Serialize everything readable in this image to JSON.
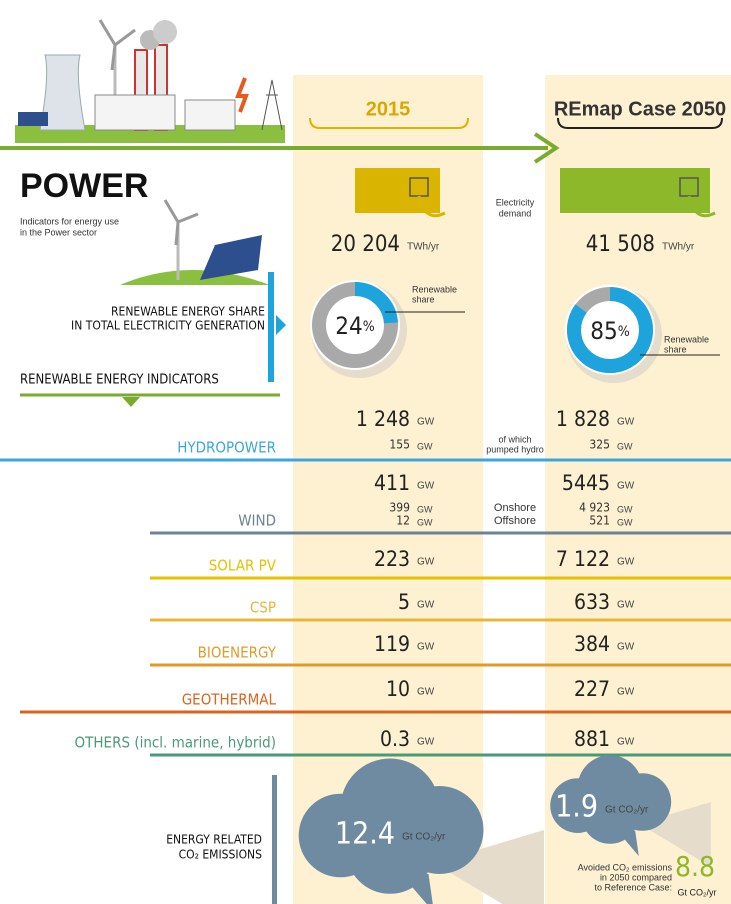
{
  "header": {
    "col_2015": "2015",
    "col_2050": "REmap Case 2050"
  },
  "title": "POWER",
  "subtitle": [
    "Indicators for energy use",
    "in the Power sector"
  ],
  "demand": {
    "label": [
      "Electricity",
      "demand"
    ],
    "v2015": "20 204",
    "v2050": "41 508",
    "unit": "TWh/yr",
    "color2015": "#d9b400",
    "color2050": "#8db82a"
  },
  "share": {
    "title": [
      "RENEWABLE ENERGY SHARE",
      "IN TOTAL ELECTRICITY GENERATION"
    ],
    "v2015": 24,
    "v2050": 85,
    "unit": "%",
    "label": [
      "Renewable",
      "share"
    ],
    "color": "#1ea4dd",
    "track": "#a9a9a9"
  },
  "indicators_title": "RENEWABLE ENERGY INDICATORS",
  "rows": [
    {
      "name": "HYDROPOWER",
      "color": "#3aa6dc",
      "v2015": "1 248",
      "v2050": "1 828",
      "unit": "GW",
      "sub": [
        {
          "label": [
            "of which",
            "pumped hydro"
          ],
          "v2015": "155",
          "v2050": "325"
        }
      ]
    },
    {
      "name": "WIND",
      "color": "#6b8494",
      "v2015": "411",
      "v2050": "5445",
      "unit": "GW",
      "sub": [
        {
          "label": [
            "Onshore"
          ],
          "v2015": "399",
          "v2050": "4 923"
        },
        {
          "label": [
            "Offshore"
          ],
          "v2015": "12",
          "v2050": "521"
        }
      ]
    },
    {
      "name": "SOLAR PV",
      "color": "#e5c100",
      "v2015": "223",
      "v2050": "7 122",
      "unit": "GW",
      "sub": []
    },
    {
      "name": "CSP",
      "color": "#e3b83a",
      "v2015": "5",
      "v2050": "633",
      "unit": "GW",
      "sub": []
    },
    {
      "name": "BIOENERGY",
      "color": "#e09a2a",
      "v2015": "119",
      "v2050": "384",
      "unit": "GW",
      "sub": []
    },
    {
      "name": "GEOTHERMAL",
      "color": "#d8641e",
      "v2015": "10",
      "v2050": "227",
      "unit": "GW",
      "sub": []
    },
    {
      "name": "OTHERS (incl. marine, hybrid)",
      "color": "#4a9a78",
      "v2015": "0.3",
      "v2050": "881",
      "unit": "GW",
      "sub": []
    }
  ],
  "emissions": {
    "title": [
      "ENERGY RELATED",
      "CO₂ EMISSIONS"
    ],
    "v2015": "12.4",
    "v2050": "1.9",
    "unit": "Gt CO₂/yr",
    "avoided_label": [
      "Avoided CO₂ emissions",
      "in 2050 compared",
      "to Reference Case:"
    ],
    "avoided": "8.8",
    "avoided_unit": "Gt CO₂/yr"
  }
}
